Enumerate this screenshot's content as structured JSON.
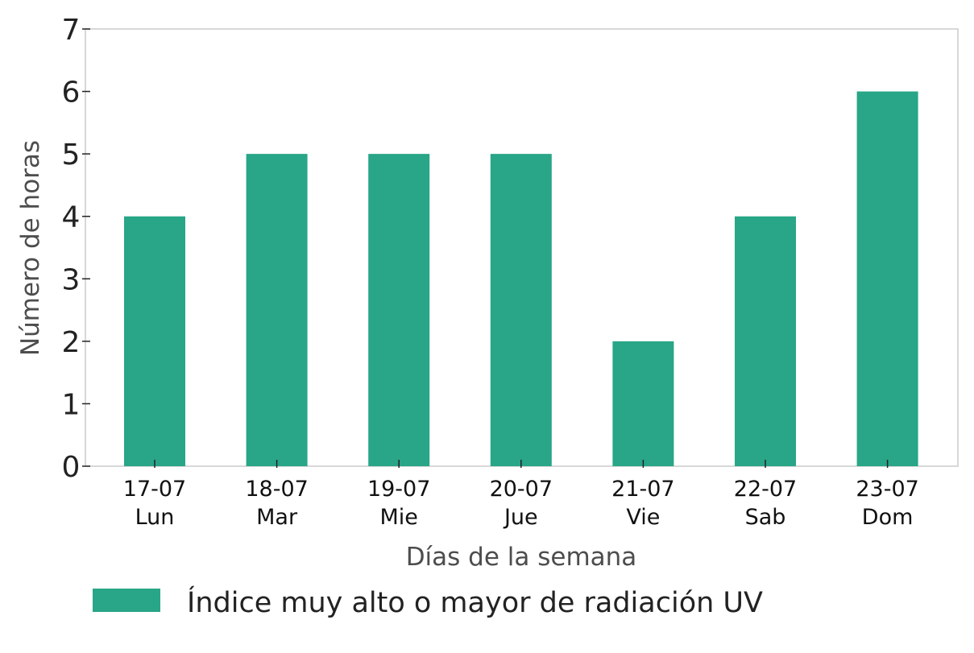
{
  "chart_data": {
    "type": "bar",
    "categories": [
      {
        "date": "17-07",
        "day": "Lun"
      },
      {
        "date": "18-07",
        "day": "Mar"
      },
      {
        "date": "19-07",
        "day": "Mie"
      },
      {
        "date": "20-07",
        "day": "Jue"
      },
      {
        "date": "21-07",
        "day": "Vie"
      },
      {
        "date": "22-07",
        "day": "Sab"
      },
      {
        "date": "23-07",
        "day": "Dom"
      }
    ],
    "series": [
      {
        "name": "Índice muy alto o mayor de radiación UV",
        "values": [
          4,
          5,
          5,
          5,
          2,
          4,
          6
        ],
        "color": "#28a687"
      }
    ],
    "xlabel": "Días de la semana",
    "ylabel": "Número de horas",
    "ylim": [
      0,
      7
    ],
    "yticks": [
      0,
      1,
      2,
      3,
      4,
      5,
      6,
      7
    ],
    "grid": false,
    "legend_position": "bottom"
  }
}
